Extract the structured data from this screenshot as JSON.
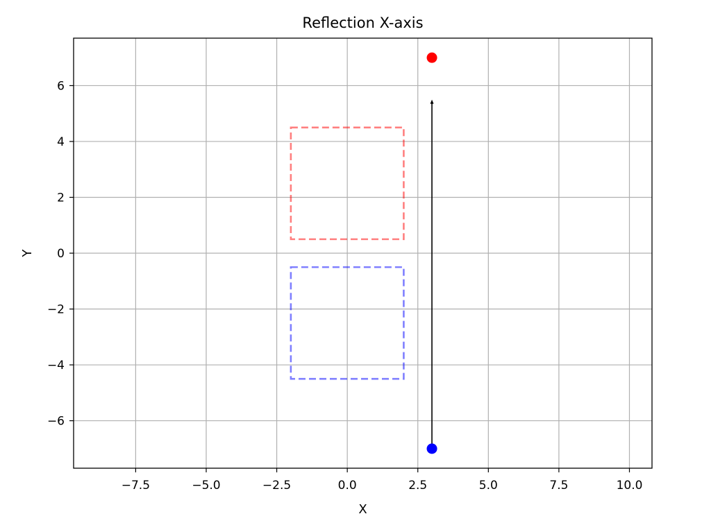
{
  "chart_data": {
    "type": "scatter",
    "title": "Reflection X-axis",
    "xlabel": "X",
    "ylabel": "Y",
    "xlim": [
      -9.7,
      10.8
    ],
    "ylim": [
      -7.7,
      7.7
    ],
    "grid": true,
    "legend": "none",
    "x_ticks": [
      -7.5,
      -5.0,
      -2.5,
      0.0,
      2.5,
      5.0,
      7.5,
      10.0
    ],
    "x_tick_labels": [
      "−7.5",
      "−5.0",
      "−2.5",
      "0.0",
      "2.5",
      "5.0",
      "7.5",
      "10.0"
    ],
    "y_ticks": [
      -6,
      -4,
      -2,
      0,
      2,
      4,
      6
    ],
    "y_tick_labels": [
      "−6",
      "−4",
      "−2",
      "0",
      "2",
      "4",
      "6"
    ],
    "rectangles": [
      {
        "x0": -2,
        "y0": -4.5,
        "x1": 2,
        "y1": -0.5,
        "color": "#0000ff",
        "alpha": 0.5,
        "linestyle": "dashed"
      },
      {
        "x0": -2,
        "y0": 0.5,
        "x1": 2,
        "y1": 4.5,
        "color": "#ff0000",
        "alpha": 0.5,
        "linestyle": "dashed"
      }
    ],
    "points": [
      {
        "x": 3,
        "y": -7,
        "color": "#0000ff"
      },
      {
        "x": 3,
        "y": 7,
        "color": "#ff0000"
      }
    ],
    "arrow": {
      "x": 3,
      "y": -7,
      "dx": 0,
      "dy": 12.5,
      "color": "#000000"
    }
  }
}
